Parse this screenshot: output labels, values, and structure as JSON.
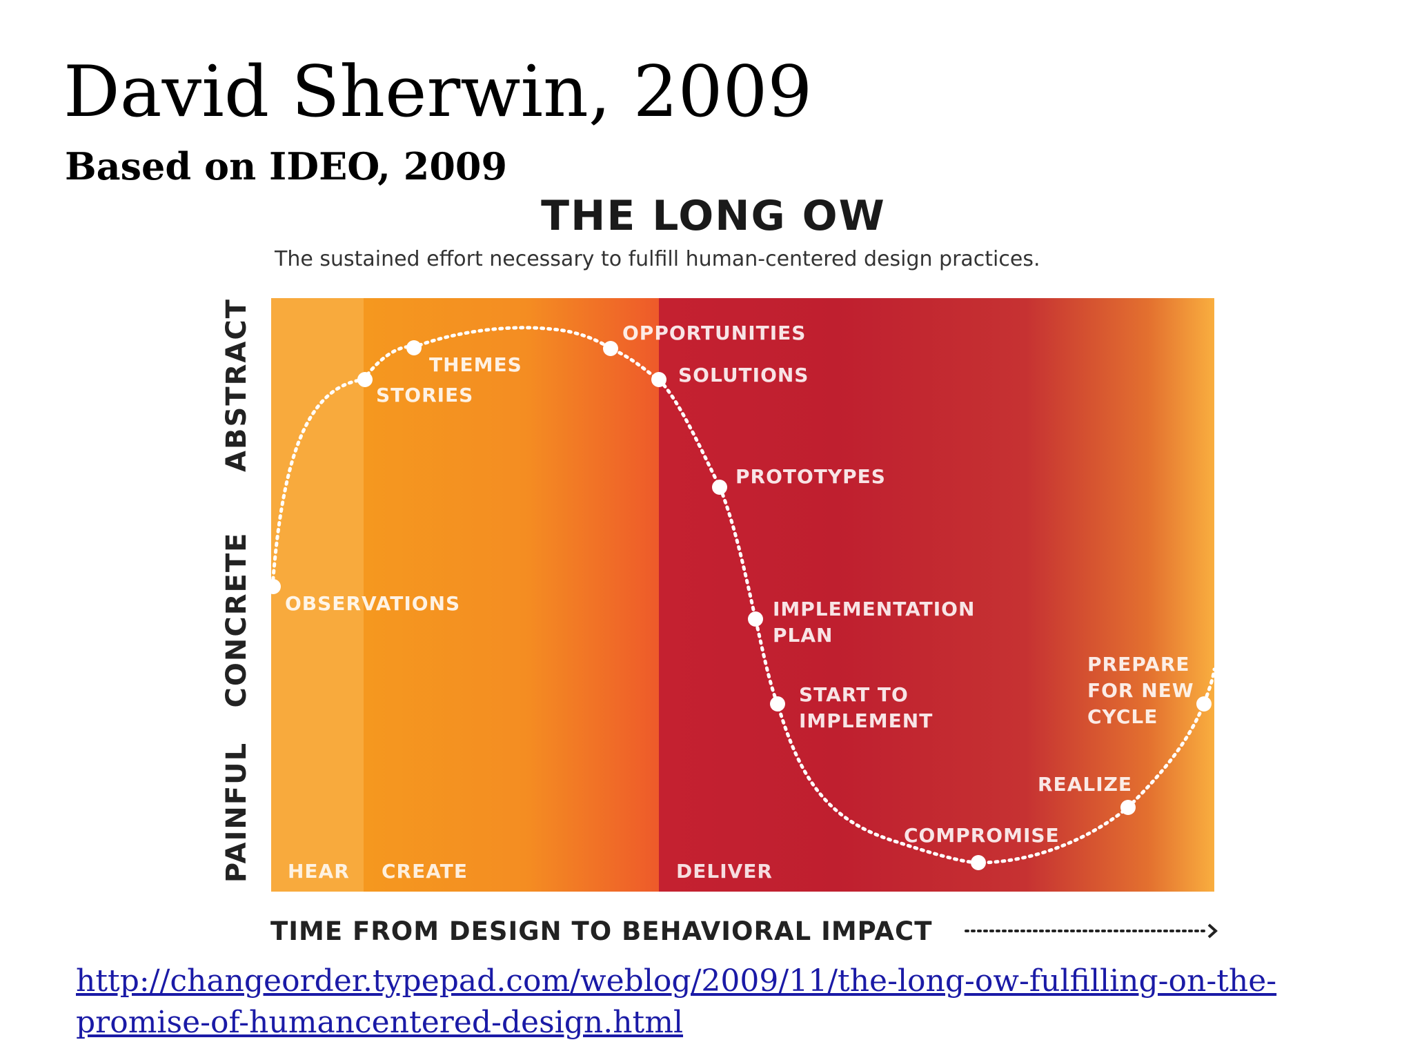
{
  "slide": {
    "title": "David Sherwin, 2009",
    "subtitle": "Based on IDEO, 2009",
    "link_line1": "http://changeorder.typepad.com/weblog/2009/11/the-long-ow-fulfilling-on-the-",
    "link_line2": "promise-of-humancentered-design.html"
  },
  "diagram": {
    "title": "THE LONG OW",
    "subtitle": "The sustained effort necessary to fulfill human-centered design practices.",
    "y_axis_labels": {
      "top": "ABSTRACT",
      "middle": "CONCRETE",
      "bottom": "PAINFUL"
    },
    "x_axis_label": "TIME FROM DESIGN TO BEHAVIORAL IMPACT",
    "phases": {
      "hear": "HEAR",
      "create": "CREATE",
      "deliver": "DELIVER"
    },
    "points": {
      "observations": "OBSERVATIONS",
      "stories": "STORIES",
      "themes": "THEMES",
      "opportunities": "OPPORTUNITIES",
      "solutions": "SOLUTIONS",
      "prototypes": "PROTOTYPES",
      "implementation_plan_1": "IMPLEMENTATION",
      "implementation_plan_2": "PLAN",
      "start_to_implement_1": "START TO",
      "start_to_implement_2": "IMPLEMENT",
      "compromise": "COMPROMISE",
      "realize": "REALIZE",
      "prepare_1": "PREPARE",
      "prepare_2": "FOR NEW",
      "prepare_3": "CYCLE"
    },
    "colors": {
      "hear_band": "#f8a93a",
      "create_start": "#f59723",
      "create_end": "#ee5a2a",
      "deliver": "#c1202f",
      "end_glow": "#f9ad3f",
      "curve": "#ffffff"
    }
  }
}
